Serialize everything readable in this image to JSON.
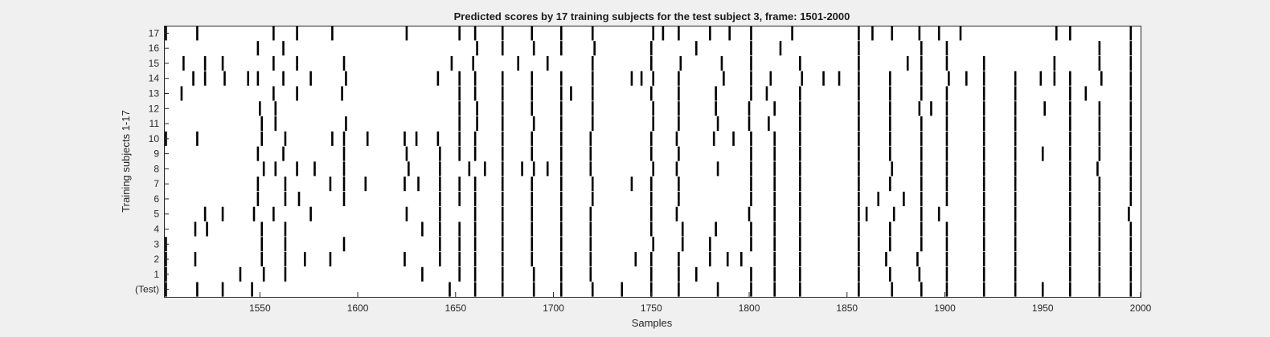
{
  "chart_data": {
    "type": "raster",
    "title": "Predicted scores by 17 training subjects for the test subject 3, frame: 1501-2000",
    "xlabel": "Samples",
    "ylabel": "Training subjects 1-17",
    "xlim": [
      1501,
      2000
    ],
    "x_ticks": [
      1550,
      1600,
      1650,
      1700,
      1750,
      1800,
      1850,
      1900,
      1950,
      2000
    ],
    "y_tick_labels": [
      "(Test)",
      "1",
      "2",
      "3",
      "4",
      "5",
      "6",
      "7",
      "8",
      "9",
      "10",
      "11",
      "12",
      "13",
      "14",
      "15",
      "16",
      "17"
    ],
    "grid": false,
    "colors": {
      "spike": "#000000",
      "plot_bg": "#ffffff",
      "figure_bg": "#f0f0f0"
    },
    "rows": [
      {
        "label": "(Test)",
        "x": [
          1502,
          1518,
          1531,
          1546,
          1647,
          1660,
          1674,
          1690,
          1704,
          1720,
          1735,
          1750,
          1764,
          1784,
          1801,
          1813,
          1826,
          1856,
          1873,
          1888,
          1901,
          1920,
          1936,
          1950,
          1964,
          1979,
          1995
        ]
      },
      {
        "label": "1",
        "x": [
          1502,
          1540,
          1552,
          1563,
          1633,
          1652,
          1660,
          1674,
          1690,
          1704,
          1719,
          1750,
          1764,
          1773,
          1801,
          1813,
          1826,
          1856,
          1872,
          1887,
          1901,
          1920,
          1936,
          1964,
          1979,
          1995
        ]
      },
      {
        "label": "2",
        "x": [
          1502,
          1517,
          1551,
          1563,
          1573,
          1586,
          1624,
          1642,
          1652,
          1660,
          1674,
          1689,
          1704,
          1719,
          1742,
          1750,
          1764,
          1780,
          1789,
          1796,
          1813,
          1826,
          1856,
          1870,
          1886,
          1901,
          1920,
          1936,
          1964,
          1979,
          1995
        ]
      },
      {
        "label": "3",
        "x": [
          1502,
          1551,
          1563,
          1593,
          1642,
          1652,
          1660,
          1674,
          1689,
          1704,
          1719,
          1751,
          1766,
          1780,
          1801,
          1813,
          1826,
          1856,
          1872,
          1888,
          1901,
          1920,
          1936,
          1964,
          1979,
          1995
        ]
      },
      {
        "label": "4",
        "x": [
          1517,
          1523,
          1551,
          1563,
          1633,
          1642,
          1652,
          1660,
          1674,
          1689,
          1704,
          1719,
          1750,
          1766,
          1783,
          1801,
          1813,
          1826,
          1856,
          1872,
          1888,
          1901,
          1920,
          1936,
          1964,
          1979,
          1995
        ]
      },
      {
        "label": "5",
        "x": [
          1522,
          1531,
          1547,
          1557,
          1576,
          1625,
          1642,
          1660,
          1674,
          1689,
          1704,
          1719,
          1750,
          1763,
          1800,
          1813,
          1826,
          1856,
          1860,
          1874,
          1888,
          1897,
          1920,
          1936,
          1964,
          1979,
          1994
        ]
      },
      {
        "label": "6",
        "x": [
          1549,
          1563,
          1570,
          1593,
          1642,
          1652,
          1660,
          1674,
          1689,
          1704,
          1720,
          1750,
          1764,
          1801,
          1813,
          1826,
          1856,
          1866,
          1879,
          1888,
          1901,
          1920,
          1936,
          1964,
          1979,
          1995
        ]
      },
      {
        "label": "7",
        "x": [
          1549,
          1563,
          1586,
          1593,
          1604,
          1624,
          1631,
          1642,
          1652,
          1660,
          1674,
          1689,
          1704,
          1720,
          1740,
          1750,
          1764,
          1801,
          1813,
          1826,
          1856,
          1872,
          1888,
          1901,
          1920,
          1936,
          1964,
          1979,
          1995
        ]
      },
      {
        "label": "8",
        "x": [
          1552,
          1558,
          1569,
          1578,
          1593,
          1626,
          1642,
          1657,
          1665,
          1674,
          1684,
          1690,
          1697,
          1704,
          1719,
          1751,
          1763,
          1784,
          1801,
          1813,
          1826,
          1856,
          1873,
          1888,
          1901,
          1920,
          1936,
          1964,
          1978,
          1995
        ]
      },
      {
        "label": "9",
        "x": [
          1549,
          1562,
          1593,
          1625,
          1642,
          1652,
          1660,
          1674,
          1689,
          1704,
          1719,
          1750,
          1764,
          1801,
          1813,
          1826,
          1856,
          1872,
          1888,
          1901,
          1920,
          1936,
          1950,
          1964,
          1979,
          1995
        ]
      },
      {
        "label": "10",
        "x": [
          1502,
          1518,
          1551,
          1563,
          1587,
          1593,
          1605,
          1624,
          1630,
          1641,
          1652,
          1660,
          1674,
          1689,
          1704,
          1719,
          1750,
          1763,
          1782,
          1792,
          1801,
          1813,
          1826,
          1856,
          1872,
          1888,
          1901,
          1920,
          1936,
          1964,
          1979,
          1995
        ]
      },
      {
        "label": "11",
        "x": [
          1551,
          1558,
          1594,
          1652,
          1661,
          1674,
          1690,
          1704,
          1720,
          1751,
          1764,
          1784,
          1800,
          1810,
          1826,
          1856,
          1872,
          1888,
          1901,
          1920,
          1936,
          1964,
          1979,
          1995
        ]
      },
      {
        "label": "12",
        "x": [
          1550,
          1558,
          1652,
          1661,
          1674,
          1689,
          1704,
          1720,
          1751,
          1764,
          1783,
          1800,
          1813,
          1826,
          1856,
          1872,
          1887,
          1893,
          1901,
          1920,
          1936,
          1951,
          1964,
          1979,
          1995
        ]
      },
      {
        "label": "13",
        "x": [
          1510,
          1557,
          1569,
          1592,
          1652,
          1660,
          1674,
          1689,
          1704,
          1709,
          1720,
          1750,
          1764,
          1783,
          1801,
          1809,
          1826,
          1856,
          1872,
          1888,
          1901,
          1920,
          1936,
          1964,
          1972,
          1995
        ]
      },
      {
        "label": "14",
        "x": [
          1516,
          1522,
          1532,
          1544,
          1549,
          1562,
          1576,
          1594,
          1641,
          1652,
          1660,
          1674,
          1689,
          1704,
          1720,
          1740,
          1745,
          1751,
          1764,
          1787,
          1801,
          1811,
          1827,
          1838,
          1846,
          1856,
          1872,
          1888,
          1902,
          1911,
          1920,
          1936,
          1949,
          1956,
          1964,
          1980,
          1995
        ]
      },
      {
        "label": "15",
        "x": [
          1511,
          1522,
          1531,
          1557,
          1569,
          1593,
          1648,
          1659,
          1682,
          1697,
          1720,
          1750,
          1765,
          1786,
          1801,
          1826,
          1856,
          1881,
          1888,
          1901,
          1920,
          1956,
          1979,
          1995
        ]
      },
      {
        "label": "16",
        "x": [
          1549,
          1562,
          1661,
          1674,
          1690,
          1704,
          1721,
          1750,
          1773,
          1801,
          1816,
          1856,
          1888,
          1901,
          1979,
          1995
        ]
      },
      {
        "label": "17",
        "x": [
          1502,
          1518,
          1557,
          1569,
          1587,
          1625,
          1652,
          1660,
          1674,
          1689,
          1704,
          1720,
          1751,
          1756,
          1764,
          1780,
          1790,
          1801,
          1822,
          1856,
          1863,
          1873,
          1887,
          1897,
          1908,
          1957,
          1964,
          1995
        ]
      }
    ]
  }
}
